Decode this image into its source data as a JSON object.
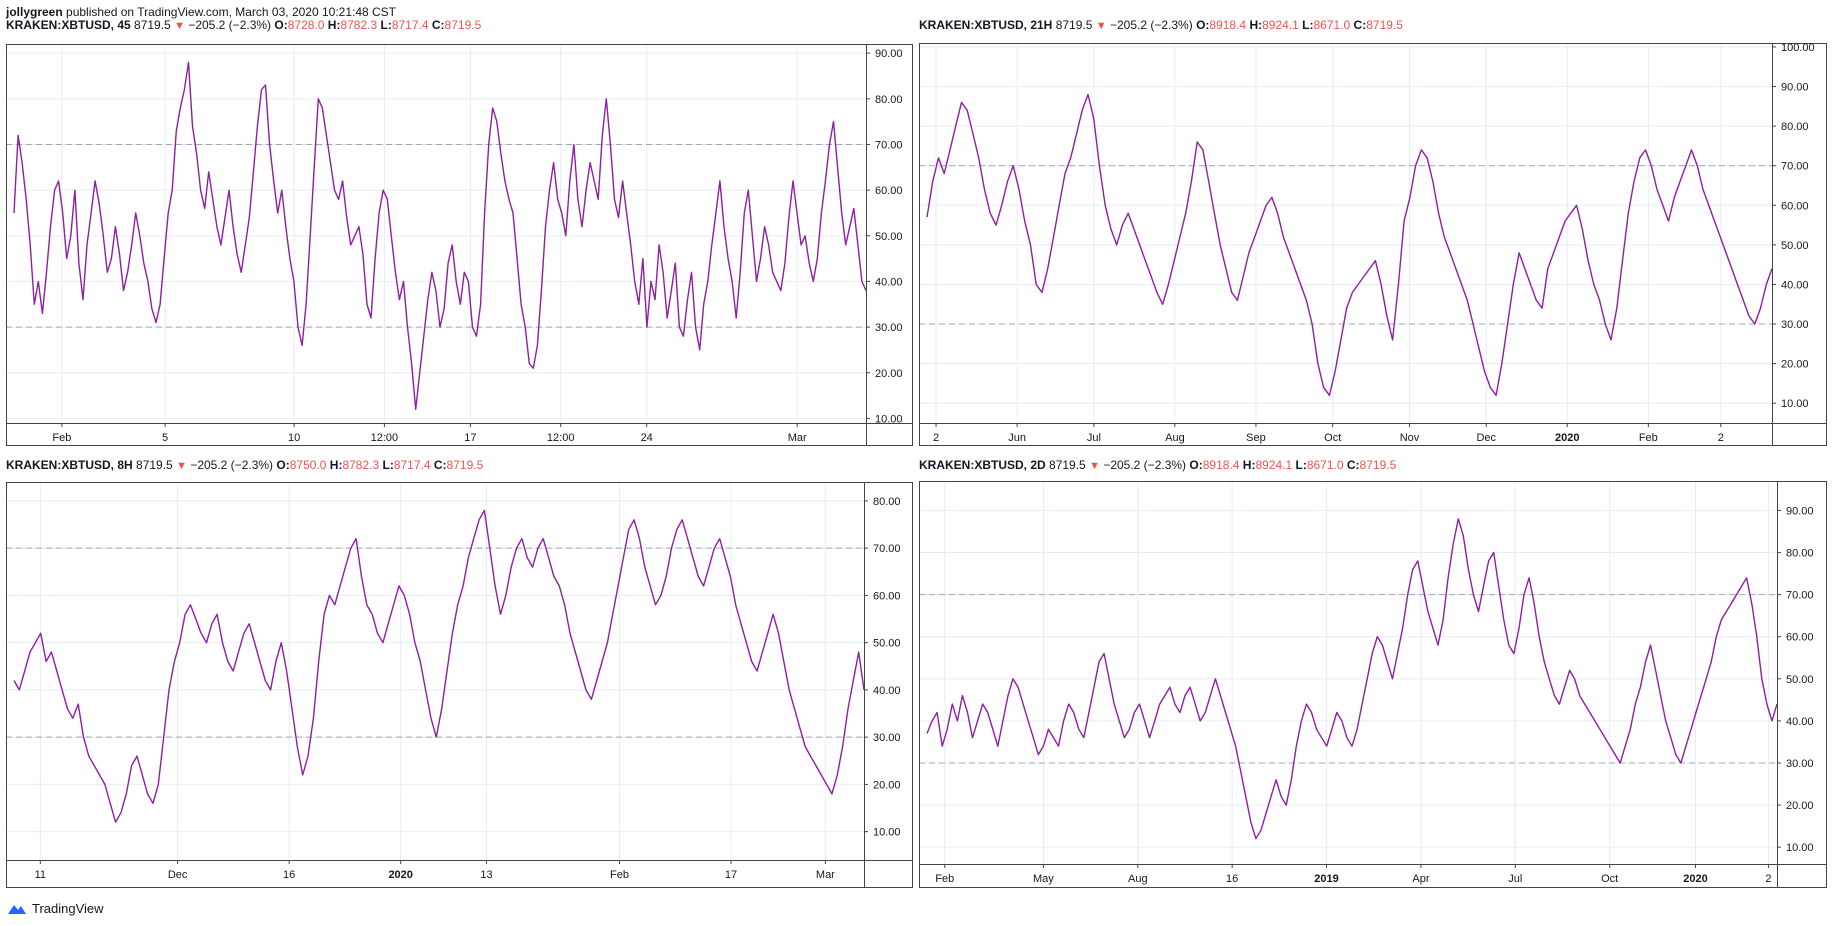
{
  "header": {
    "author": "jollygreen",
    "published": "published on TradingView.com, March 03, 2020 10:21:48 CST"
  },
  "footer": {
    "brand": "TradingView"
  },
  "colors": {
    "line": "#8e1ea3",
    "down": "#ef5350",
    "grid": "#e8edf2",
    "band": "#9aa8b8",
    "axis": "#131722"
  },
  "panes": [
    {
      "symbol": "KRAKEN:XBTUSD, 45",
      "price": "8719.5",
      "change": "−205.2 (−2.3%)",
      "o": "8728.0",
      "h": "8782.3",
      "l": "8717.4",
      "c": "8719.5"
    },
    {
      "symbol": "KRAKEN:XBTUSD, 21H",
      "price": "8719.5",
      "change": "−205.2 (−2.3%)",
      "o": "8918.4",
      "h": "8924.1",
      "l": "8671.0",
      "c": "8719.5"
    },
    {
      "symbol": "KRAKEN:XBTUSD, 8H",
      "price": "8719.5",
      "change": "−205.2 (−2.3%)",
      "o": "8750.0",
      "h": "8782.3",
      "l": "8717.4",
      "c": "8719.5"
    },
    {
      "symbol": "KRAKEN:XBTUSD, 2D",
      "price": "8719.5",
      "change": "−205.2 (−2.3%)",
      "o": "8918.4",
      "h": "8924.1",
      "l": "8671.0",
      "c": "8719.5"
    }
  ],
  "chart_data": [
    {
      "type": "line",
      "timeframe": "45",
      "ylim": [
        9,
        92
      ],
      "yticks": [
        10,
        20,
        30,
        40,
        50,
        60,
        70,
        80,
        90
      ],
      "ytick_labels": [
        "10.00",
        "20.00",
        "30.00",
        "40.00",
        "50.00",
        "60.00",
        "70.00",
        "80.00",
        "90.00"
      ],
      "bands": [
        30,
        70
      ],
      "xticks": [
        {
          "pos": 0.065,
          "label": "Feb",
          "bold": false
        },
        {
          "pos": 0.185,
          "label": "5",
          "bold": false
        },
        {
          "pos": 0.335,
          "label": "10",
          "bold": false
        },
        {
          "pos": 0.44,
          "label": "12:00",
          "bold": false
        },
        {
          "pos": 0.54,
          "label": "17",
          "bold": false
        },
        {
          "pos": 0.645,
          "label": "12:00",
          "bold": false
        },
        {
          "pos": 0.745,
          "label": "24",
          "bold": false
        },
        {
          "pos": 0.92,
          "label": "Mar",
          "bold": false
        }
      ],
      "series": [
        {
          "values": [
            55,
            72,
            66,
            58,
            48,
            35,
            40,
            33,
            42,
            52,
            60,
            62,
            55,
            45,
            50,
            60,
            44,
            36,
            48,
            55,
            62,
            57,
            50,
            42,
            45,
            52,
            46,
            38,
            42,
            48,
            55,
            50,
            44,
            40,
            34,
            31,
            35,
            45,
            55,
            60,
            73,
            78,
            82,
            88,
            74,
            68,
            60,
            56,
            64,
            58,
            52,
            48,
            54,
            60,
            52,
            46,
            42,
            48,
            54,
            64,
            74,
            82,
            83,
            70,
            62,
            55,
            60,
            52,
            45,
            40,
            30,
            26,
            35,
            50,
            65,
            80,
            78,
            72,
            66,
            60,
            58,
            62,
            54,
            48,
            50,
            52,
            46,
            35,
            32,
            45,
            55,
            60,
            58,
            50,
            42,
            36,
            40,
            30,
            22,
            12,
            20,
            28,
            36,
            42,
            38,
            30,
            34,
            44,
            48,
            40,
            35,
            42,
            40,
            30,
            28,
            35,
            55,
            70,
            78,
            75,
            68,
            62,
            58,
            55,
            45,
            35,
            30,
            22,
            21,
            26,
            38,
            52,
            60,
            66,
            58,
            55,
            50,
            62,
            70,
            58,
            52,
            60,
            66,
            62,
            58,
            72,
            80,
            70,
            58,
            54,
            62,
            55,
            48,
            40,
            35,
            45,
            30,
            40,
            36,
            48,
            42,
            32,
            38,
            44,
            30,
            28,
            36,
            42,
            30,
            25,
            35,
            40,
            48,
            55,
            62,
            52,
            45,
            40,
            32,
            42,
            55,
            60,
            50,
            40,
            45,
            52,
            48,
            42,
            40,
            38,
            44,
            54,
            62,
            55,
            48,
            50,
            44,
            40,
            45,
            55,
            62,
            70,
            75,
            65,
            55,
            48,
            52,
            56,
            48,
            40,
            38
          ]
        }
      ]
    },
    {
      "type": "line",
      "timeframe": "21H",
      "ylim": [
        5,
        101
      ],
      "yticks": [
        10,
        20,
        30,
        40,
        50,
        60,
        70,
        80,
        90,
        100
      ],
      "ytick_labels": [
        "10.00",
        "20.00",
        "30.00",
        "40.00",
        "50.00",
        "60.00",
        "70.00",
        "80.00",
        "90.00",
        "100.00"
      ],
      "bands": [
        30,
        70
      ],
      "xticks": [
        {
          "pos": 0.02,
          "label": "2",
          "bold": false
        },
        {
          "pos": 0.115,
          "label": "Jun",
          "bold": false
        },
        {
          "pos": 0.205,
          "label": "Jul",
          "bold": false
        },
        {
          "pos": 0.3,
          "label": "Aug",
          "bold": false
        },
        {
          "pos": 0.395,
          "label": "Sep",
          "bold": false
        },
        {
          "pos": 0.485,
          "label": "Oct",
          "bold": false
        },
        {
          "pos": 0.575,
          "label": "Nov",
          "bold": false
        },
        {
          "pos": 0.665,
          "label": "Dec",
          "bold": false
        },
        {
          "pos": 0.76,
          "label": "2020",
          "bold": true
        },
        {
          "pos": 0.855,
          "label": "Feb",
          "bold": false
        },
        {
          "pos": 0.94,
          "label": "2",
          "bold": false
        }
      ],
      "series": [
        {
          "values": [
            57,
            66,
            72,
            68,
            74,
            80,
            86,
            84,
            78,
            72,
            64,
            58,
            55,
            60,
            66,
            70,
            64,
            56,
            50,
            40,
            38,
            44,
            52,
            60,
            68,
            72,
            78,
            84,
            88,
            82,
            70,
            60,
            54,
            50,
            55,
            58,
            54,
            50,
            46,
            42,
            38,
            35,
            40,
            46,
            52,
            58,
            66,
            76,
            74,
            66,
            58,
            50,
            44,
            38,
            36,
            42,
            48,
            52,
            56,
            60,
            62,
            58,
            52,
            48,
            44,
            40,
            36,
            30,
            20,
            14,
            12,
            18,
            26,
            34,
            38,
            40,
            42,
            44,
            46,
            40,
            32,
            26,
            40,
            56,
            62,
            70,
            74,
            72,
            66,
            58,
            52,
            48,
            44,
            40,
            36,
            30,
            24,
            18,
            14,
            12,
            20,
            30,
            40,
            48,
            44,
            40,
            36,
            34,
            44,
            48,
            52,
            56,
            58,
            60,
            54,
            46,
            40,
            36,
            30,
            26,
            34,
            46,
            58,
            66,
            72,
            74,
            70,
            64,
            60,
            56,
            62,
            66,
            70,
            74,
            70,
            64,
            60,
            56,
            52,
            48,
            44,
            40,
            36,
            32,
            30,
            34,
            40,
            44
          ]
        }
      ]
    },
    {
      "type": "line",
      "timeframe": "8H",
      "ylim": [
        4,
        84
      ],
      "yticks": [
        10,
        20,
        30,
        40,
        50,
        60,
        70,
        80
      ],
      "ytick_labels": [
        "10.00",
        "20.00",
        "30.00",
        "40.00",
        "50.00",
        "60.00",
        "70.00",
        "80.00"
      ],
      "bands": [
        30,
        70
      ],
      "xticks": [
        {
          "pos": 0.04,
          "label": "11",
          "bold": false
        },
        {
          "pos": 0.2,
          "label": "Dec",
          "bold": false
        },
        {
          "pos": 0.33,
          "label": "16",
          "bold": false
        },
        {
          "pos": 0.46,
          "label": "2020",
          "bold": true
        },
        {
          "pos": 0.56,
          "label": "13",
          "bold": false
        },
        {
          "pos": 0.715,
          "label": "Feb",
          "bold": false
        },
        {
          "pos": 0.845,
          "label": "17",
          "bold": false
        },
        {
          "pos": 0.955,
          "label": "Mar",
          "bold": false
        }
      ],
      "series": [
        {
          "values": [
            42,
            40,
            44,
            48,
            50,
            52,
            46,
            48,
            44,
            40,
            36,
            34,
            37,
            30,
            26,
            24,
            22,
            20,
            16,
            12,
            14,
            18,
            24,
            26,
            22,
            18,
            16,
            20,
            30,
            40,
            46,
            50,
            56,
            58,
            55,
            52,
            50,
            54,
            56,
            50,
            46,
            44,
            48,
            52,
            54,
            50,
            46,
            42,
            40,
            46,
            50,
            44,
            36,
            28,
            22,
            26,
            34,
            46,
            56,
            60,
            58,
            62,
            66,
            70,
            72,
            64,
            58,
            56,
            52,
            50,
            54,
            58,
            62,
            60,
            56,
            50,
            46,
            40,
            34,
            30,
            36,
            44,
            52,
            58,
            62,
            68,
            72,
            76,
            78,
            70,
            62,
            56,
            60,
            66,
            70,
            72,
            68,
            66,
            70,
            72,
            68,
            64,
            62,
            58,
            52,
            48,
            44,
            40,
            38,
            42,
            46,
            50,
            56,
            62,
            68,
            74,
            76,
            72,
            66,
            62,
            58,
            60,
            64,
            70,
            74,
            76,
            72,
            68,
            64,
            62,
            66,
            70,
            72,
            68,
            64,
            58,
            54,
            50,
            46,
            44,
            48,
            52,
            56,
            52,
            46,
            40,
            36,
            32,
            28,
            26,
            24,
            22,
            20,
            18,
            22,
            28,
            36,
            42,
            48,
            40
          ]
        }
      ]
    },
    {
      "type": "line",
      "timeframe": "2D",
      "ylim": [
        6,
        97
      ],
      "yticks": [
        10,
        20,
        30,
        40,
        50,
        60,
        70,
        80,
        90
      ],
      "ytick_labels": [
        "10.00",
        "20.00",
        "30.00",
        "40.00",
        "50.00",
        "60.00",
        "70.00",
        "80.00",
        "90.00"
      ],
      "bands": [
        30,
        70
      ],
      "xticks": [
        {
          "pos": 0.03,
          "label": "Feb",
          "bold": false
        },
        {
          "pos": 0.145,
          "label": "May",
          "bold": false
        },
        {
          "pos": 0.255,
          "label": "Aug",
          "bold": false
        },
        {
          "pos": 0.365,
          "label": "16",
          "bold": false
        },
        {
          "pos": 0.475,
          "label": "2019",
          "bold": true
        },
        {
          "pos": 0.585,
          "label": "Apr",
          "bold": false
        },
        {
          "pos": 0.695,
          "label": "Jul",
          "bold": false
        },
        {
          "pos": 0.805,
          "label": "Oct",
          "bold": false
        },
        {
          "pos": 0.905,
          "label": "2020",
          "bold": true
        },
        {
          "pos": 0.99,
          "label": "2",
          "bold": false
        }
      ],
      "series": [
        {
          "values": [
            37,
            40,
            42,
            34,
            38,
            44,
            40,
            46,
            42,
            36,
            40,
            44,
            42,
            38,
            34,
            40,
            46,
            50,
            48,
            44,
            40,
            36,
            32,
            34,
            38,
            36,
            34,
            40,
            44,
            42,
            38,
            36,
            42,
            48,
            54,
            56,
            50,
            44,
            40,
            36,
            38,
            42,
            44,
            40,
            36,
            40,
            44,
            46,
            48,
            44,
            42,
            46,
            48,
            44,
            40,
            42,
            46,
            50,
            46,
            42,
            38,
            34,
            28,
            22,
            16,
            12,
            14,
            18,
            22,
            26,
            22,
            20,
            26,
            34,
            40,
            44,
            42,
            38,
            36,
            34,
            38,
            42,
            40,
            36,
            34,
            38,
            44,
            50,
            56,
            60,
            58,
            54,
            50,
            56,
            62,
            70,
            76,
            78,
            72,
            66,
            62,
            58,
            64,
            74,
            82,
            88,
            84,
            76,
            70,
            66,
            72,
            78,
            80,
            72,
            64,
            58,
            56,
            62,
            70,
            74,
            68,
            60,
            54,
            50,
            46,
            44,
            48,
            52,
            50,
            46,
            44,
            42,
            40,
            38,
            36,
            34,
            32,
            30,
            34,
            38,
            44,
            48,
            54,
            58,
            52,
            46,
            40,
            36,
            32,
            30,
            34,
            38,
            42,
            46,
            50,
            54,
            60,
            64,
            66,
            68,
            70,
            72,
            74,
            68,
            60,
            50,
            44,
            40,
            44
          ]
        }
      ]
    }
  ]
}
